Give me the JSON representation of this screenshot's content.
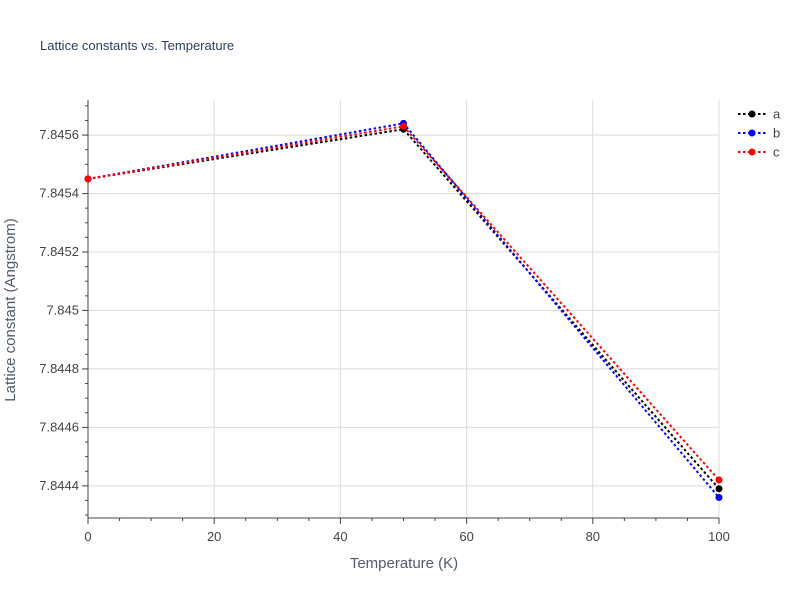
{
  "chart_data": {
    "type": "line",
    "title": "Lattice constants vs. Temperature",
    "xlabel": "Temperature (K)",
    "ylabel": "Lattice constant (Angstrom)",
    "xlim": [
      0,
      100
    ],
    "ylim": [
      7.84429,
      7.84572
    ],
    "x_ticks": [
      0,
      20,
      40,
      60,
      80,
      100
    ],
    "x_tick_labels": [
      "0",
      "20",
      "40",
      "60",
      "80",
      "100"
    ],
    "y_ticks": [
      7.8444,
      7.8446,
      7.8448,
      7.845,
      7.8452,
      7.8454,
      7.8456
    ],
    "y_tick_labels": [
      "7.8444",
      "7.8446",
      "7.8448",
      "7.845",
      "7.8452",
      "7.8454",
      "7.8456"
    ],
    "grid": true,
    "legend_position": "top-right",
    "series": [
      {
        "name": "a",
        "color": "#000000",
        "line_style": "dotted",
        "marker": "circle",
        "x": [
          0,
          50,
          100
        ],
        "y": [
          7.84545,
          7.84562,
          7.84439
        ]
      },
      {
        "name": "b",
        "color": "#0000ff",
        "line_style": "dotted",
        "marker": "circle",
        "x": [
          0,
          50,
          100
        ],
        "y": [
          7.84545,
          7.84564,
          7.84436
        ]
      },
      {
        "name": "c",
        "color": "#ff0000",
        "line_style": "dotted",
        "marker": "circle",
        "x": [
          0,
          50,
          100
        ],
        "y": [
          7.84545,
          7.84563,
          7.84442
        ]
      }
    ]
  }
}
